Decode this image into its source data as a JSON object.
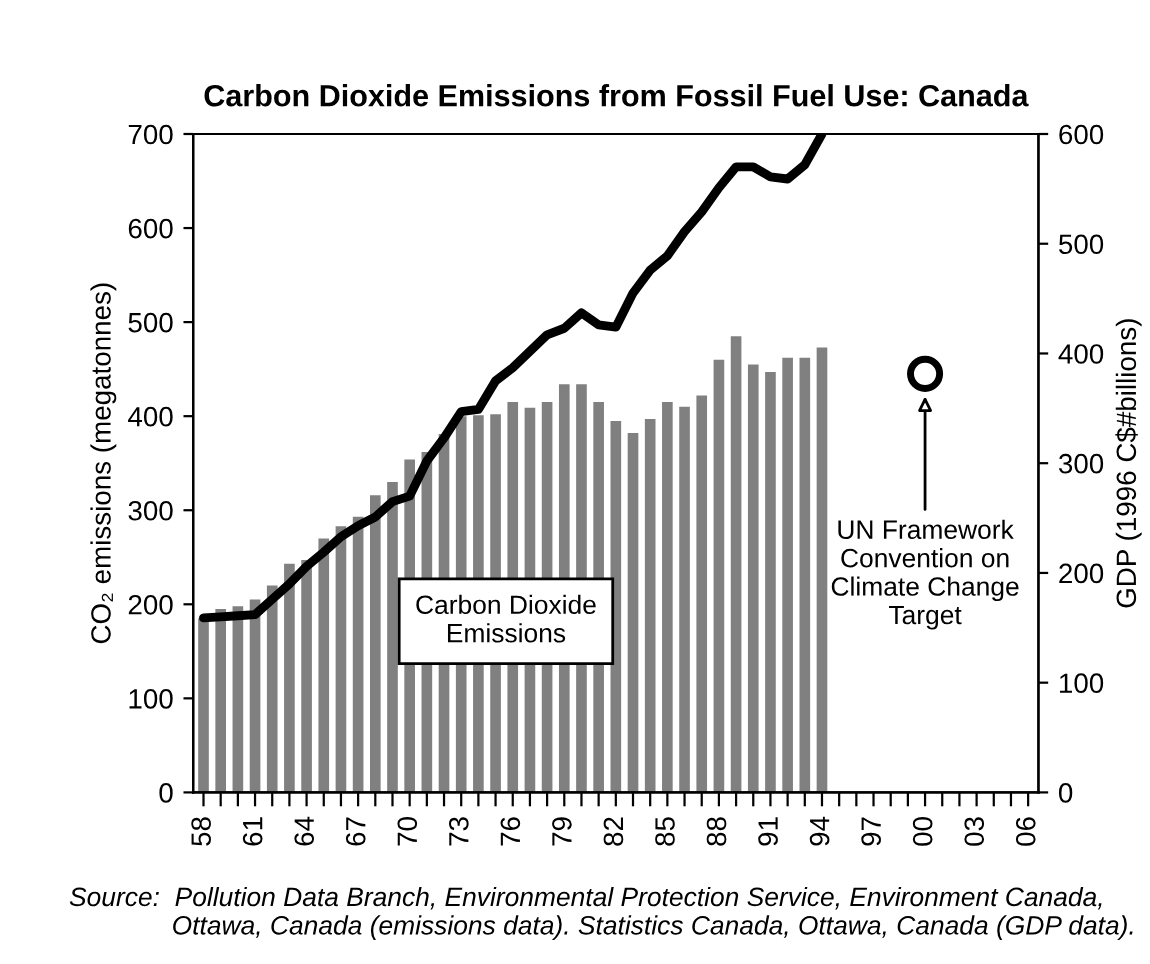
{
  "chart_data": {
    "type": "bar",
    "title": "Carbon Dioxide Emissions from Fossil Fuel Use: Canada",
    "ylabel": "CO₂ emissions (megatonnes)",
    "y2label": "GDP (1996 C$#billions)",
    "categories": [
      "58",
      null,
      null,
      "61",
      null,
      null,
      "64",
      null,
      null,
      "67",
      null,
      null,
      "70",
      null,
      null,
      "73",
      null,
      null,
      "76",
      null,
      null,
      "79",
      null,
      null,
      "82",
      null,
      null,
      "85",
      null,
      null,
      "88",
      null,
      null,
      "91",
      null,
      null,
      "94",
      null,
      null,
      "97",
      null,
      null,
      "00",
      null,
      null,
      "03",
      null,
      null,
      "06"
    ],
    "series": [
      {
        "color": "#808080",
        "values": [
          185,
          195,
          198,
          205,
          220,
          243,
          247,
          270,
          283,
          293,
          316,
          330,
          354,
          362,
          381,
          400,
          401,
          402,
          415,
          409,
          415,
          434,
          434,
          415,
          395,
          382,
          397,
          415,
          410,
          422,
          460,
          485,
          455,
          447,
          462,
          462,
          473,
          null,
          null,
          null,
          null,
          null,
          null,
          null,
          null,
          null,
          null,
          null,
          null
        ]
      },
      {
        "type": "line",
        "axis": "y2",
        "color": "#000000",
        "values": [
          159,
          160,
          161,
          162,
          176,
          190,
          206,
          219,
          233,
          243,
          251,
          265,
          270,
          302,
          323,
          347,
          349,
          375,
          387,
          402,
          417,
          423,
          437,
          426,
          424,
          455,
          476,
          489,
          511,
          529,
          551,
          570,
          570,
          561,
          559,
          572,
          600,
          null,
          null,
          null,
          null,
          null,
          null,
          null,
          null,
          null,
          null,
          null,
          null
        ]
      },
      {
        "type": "scatter",
        "color": "#000000",
        "marker": "circle",
        "x": [
          "00"
        ],
        "values": [
          445
        ]
      }
    ],
    "ylim": [
      0,
      700
    ],
    "yticks": [
      0,
      100,
      200,
      300,
      400,
      500,
      600,
      700
    ],
    "y2lim": [
      0,
      600
    ],
    "y2ticks": [
      0,
      100,
      200,
      300,
      400,
      500,
      600
    ],
    "annotations": [
      "UN Framework\nConvention on\nClimate Change\nTarget",
      "Carbon Dioxide\nEmissions",
      "Source:  Pollution Data Branch, Environmental Protection Service, Environment Canada,\n              Ottawa, Canada (emissions data). Statistics Canada, Ottawa, Canada (GDP data)."
    ],
    "grid": false,
    "legend": false
  }
}
